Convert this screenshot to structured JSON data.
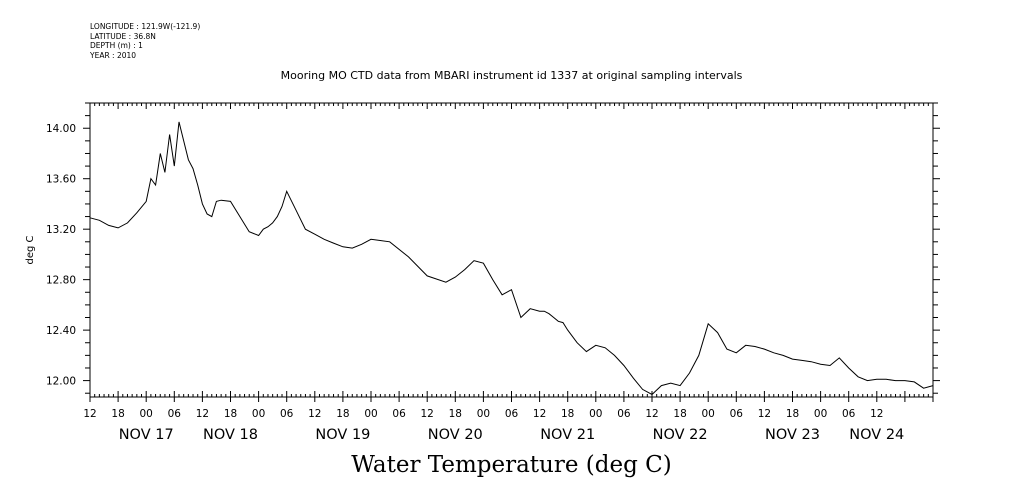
{
  "meta": {
    "longitude": "LONGITUDE : 121.9W(-121.9)",
    "latitude": "LATITUDE : 36.8N",
    "depth": "DEPTH (m) : 1",
    "year": "YEAR : 2010"
  },
  "chart_data": {
    "type": "line",
    "title": "Mooring MO CTD data from MBARI instrument id 1337 at original sampling intervals",
    "bottom_title": "Water Temperature (deg C)",
    "ylabel": "deg C",
    "xlabel": "",
    "x_units": "hours since NOV 17 00:00 (2010)",
    "xlim": [
      -12,
      168
    ],
    "ylim": [
      11.87,
      14.2
    ],
    "yticks": [
      "12.00",
      "12.40",
      "12.80",
      "13.20",
      "13.60",
      "14.00"
    ],
    "ytick_values": [
      12.0,
      12.4,
      12.8,
      13.2,
      13.6,
      14.0
    ],
    "hour_tick_labels": [
      "12",
      "18",
      "00",
      "06",
      "12",
      "18",
      "00",
      "06",
      "12",
      "18",
      "00",
      "06",
      "12",
      "18",
      "00",
      "06",
      "12",
      "18",
      "00",
      "06",
      "12",
      "18",
      "00",
      "06",
      "12",
      "18",
      "00",
      "06",
      "12"
    ],
    "day_labels": [
      "NOV 17",
      "NOV 18",
      "NOV 19",
      "NOV 20",
      "NOV 21",
      "NOV 22",
      "NOV 23",
      "NOV 24"
    ],
    "day_label_hours": [
      0,
      18,
      42,
      66,
      90,
      114,
      138,
      156
    ],
    "grid": false,
    "series": [
      {
        "name": "",
        "x": [
          -12,
          -10,
          -8,
          -6,
          -4,
          -2,
          0,
          1,
          2,
          3,
          4,
          5,
          6,
          7,
          8,
          9,
          10,
          11,
          12,
          13,
          14,
          15,
          16,
          18,
          20,
          22,
          24,
          25,
          26,
          27,
          28,
          29,
          30,
          32,
          34,
          36,
          38,
          40,
          42,
          44,
          46,
          48,
          52,
          56,
          60,
          64,
          66,
          68,
          70,
          72,
          74,
          76,
          78,
          80,
          82,
          84,
          85,
          86,
          87,
          88,
          89,
          90,
          92,
          94,
          96,
          98,
          100,
          102,
          104,
          106,
          108,
          110,
          112,
          114,
          116,
          118,
          120,
          122,
          124,
          126,
          128,
          130,
          132,
          134,
          136,
          138,
          140,
          142,
          144,
          146,
          148,
          150,
          152,
          154,
          156,
          158,
          160,
          162,
          164,
          166,
          168
        ],
        "y": [
          13.29,
          13.27,
          13.23,
          13.21,
          13.25,
          13.33,
          13.42,
          13.6,
          13.55,
          13.8,
          13.65,
          13.95,
          13.7,
          14.05,
          13.9,
          13.75,
          13.68,
          13.55,
          13.4,
          13.32,
          13.3,
          13.42,
          13.43,
          13.42,
          13.3,
          13.18,
          13.15,
          13.2,
          13.22,
          13.25,
          13.3,
          13.38,
          13.5,
          13.35,
          13.2,
          13.16,
          13.12,
          13.09,
          13.06,
          13.05,
          13.08,
          13.12,
          13.1,
          12.98,
          12.83,
          12.78,
          12.82,
          12.88,
          12.95,
          12.93,
          12.8,
          12.68,
          12.72,
          12.5,
          12.57,
          12.55,
          12.55,
          12.53,
          12.5,
          12.47,
          12.46,
          12.4,
          12.3,
          12.23,
          12.28,
          12.26,
          12.2,
          12.12,
          12.02,
          11.93,
          11.89,
          11.96,
          11.98,
          11.96,
          12.06,
          12.2,
          12.45,
          12.38,
          12.25,
          12.22,
          12.28,
          12.27,
          12.25,
          12.22,
          12.2,
          12.17,
          12.16,
          12.15,
          12.13,
          12.12,
          12.18,
          12.1,
          12.03,
          12.0,
          12.01,
          12.01,
          12.0,
          12.0,
          11.99,
          11.94,
          11.96
        ]
      }
    ]
  }
}
